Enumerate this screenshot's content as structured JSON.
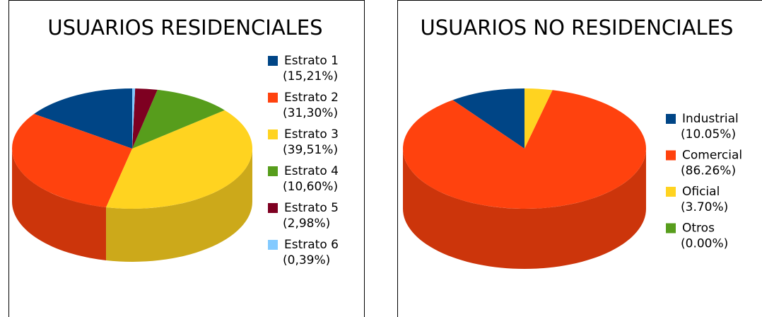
{
  "chart_data": [
    {
      "type": "pie",
      "title": "USUARIOS RESIDENCIALES",
      "categories": [
        "Estrato 1",
        "Estrato 2",
        "Estrato 3",
        "Estrato 4",
        "Estrato 5",
        "Estrato 6"
      ],
      "values": [
        15.21,
        31.3,
        39.51,
        10.6,
        2.98,
        0.39
      ],
      "value_labels": [
        "(15,21%)",
        "(31,30%)",
        "(39,51%)",
        "(10,60%)",
        "(2,98%)",
        "(0,39%)"
      ],
      "colors": [
        "#004586",
        "#ff420e",
        "#ffd320",
        "#579d1c",
        "#7e0021",
        "#83caff"
      ]
    },
    {
      "type": "pie",
      "title": "USUARIOS NO RESIDENCIALES",
      "categories": [
        "Industrial",
        "Comercial",
        "Oficial",
        "Otros"
      ],
      "values": [
        10.05,
        86.26,
        3.7,
        0.0
      ],
      "value_labels": [
        "(10.05%)",
        "(86.26%)",
        "(3.70%)",
        "(0.00%)"
      ],
      "colors": [
        "#004586",
        "#ff420e",
        "#ffd320",
        "#579d1c"
      ]
    }
  ]
}
